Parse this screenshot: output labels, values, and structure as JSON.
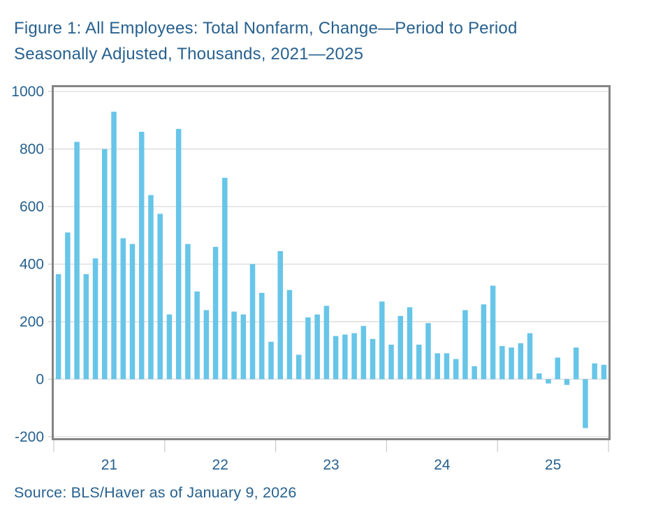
{
  "figure": {
    "title_line1": "Figure 1: All Employees: Total Nonfarm, Change—Period to Period",
    "title_line2": "Seasonally Adjusted, Thousands, 2021—2025",
    "source": "Source: BLS/Haver as of January 9, 2026"
  },
  "colors": {
    "text_blue": "#27618F",
    "bar_blue": "#67C5E8",
    "border_gray": "#848484",
    "gridline_gray": "#D8D8D8",
    "tick_gray": "#C9C9C9",
    "background": "#FFFFFF"
  },
  "chart_data": {
    "type": "bar",
    "title": "Figure 1: All Employees: Total Nonfarm, Change—Period to Period Seasonally Adjusted, Thousands, 2021—2025",
    "xlabel": "",
    "ylabel": "Thousands",
    "unit": "thousands, month-over-month change, seasonally adjusted",
    "ylim": [
      -205,
      1015
    ],
    "yticks": [
      1000,
      800,
      600,
      400,
      200,
      0,
      -200
    ],
    "grid": "horizontal",
    "legend_position": "none",
    "x_year_labels": [
      "21",
      "22",
      "23",
      "24",
      "25"
    ],
    "years": [
      {
        "label": "21",
        "year": 2021,
        "values": [
          365,
          510,
          825,
          365,
          420,
          800,
          930,
          490,
          470,
          860,
          640,
          575
        ]
      },
      {
        "label": "22",
        "year": 2022,
        "values": [
          225,
          870,
          470,
          305,
          240,
          460,
          700,
          235,
          225,
          400,
          300,
          130
        ]
      },
      {
        "label": "23",
        "year": 2023,
        "values": [
          445,
          310,
          85,
          215,
          225,
          255,
          150,
          155,
          160,
          185,
          140,
          270
        ]
      },
      {
        "label": "24",
        "year": 2024,
        "values": [
          120,
          220,
          250,
          120,
          195,
          90,
          90,
          70,
          240,
          45,
          260,
          325
        ]
      },
      {
        "label": "25",
        "year": 2025,
        "values": [
          115,
          110,
          125,
          160,
          20,
          -15,
          75,
          -20,
          110,
          -170,
          55,
          50
        ]
      }
    ]
  }
}
